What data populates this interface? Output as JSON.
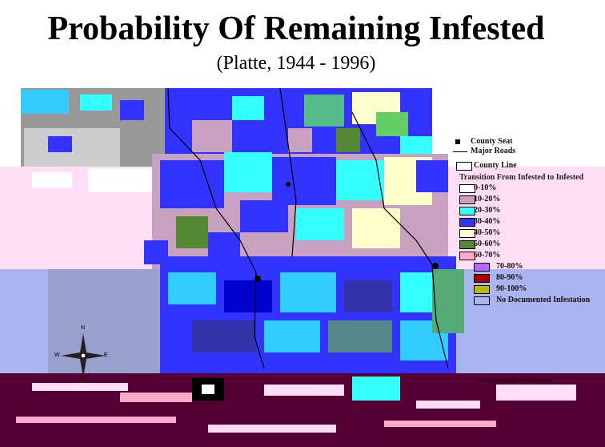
{
  "title": "Probability Of Remaining Infested",
  "subtitle": "(Platte, 1944 - 1996)",
  "legend": {
    "county_seat": "County Seat",
    "roads": "Major Roads",
    "county_line": "County Line",
    "heading": "Transition From Infested to Infested",
    "classes": [
      {
        "label": "0-10%",
        "color": "#ffffff"
      },
      {
        "label": "10-20%",
        "color": "#c8a0c0"
      },
      {
        "label": "20-30%",
        "color": "#33ffff"
      },
      {
        "label": "30-40%",
        "color": "#3333ff"
      },
      {
        "label": "40-50%",
        "color": "#ffffcc"
      },
      {
        "label": "50-60%",
        "color": "#558833"
      },
      {
        "label": "60-70%",
        "color": "#ffaacc"
      },
      {
        "label": "70-80%",
        "color": "#bb66ff"
      },
      {
        "label": "80-90%",
        "color": "#aa0000"
      },
      {
        "label": "90-100%",
        "color": "#bbbb00"
      },
      {
        "label": "No Documented Infestation",
        "color": "#aab4ee"
      }
    ]
  },
  "compass": {
    "n": "N",
    "s": "S",
    "e": "E",
    "w": "W"
  },
  "credit": "This map produced by Klara Zimmerman",
  "colors": {
    "corrupt_pink": "#ffddf5",
    "corrupt_lavender": "#aab4ee",
    "corrupt_maroon": "#550033",
    "map_gray": "#bbbbbb",
    "dark_gray": "#777777"
  }
}
